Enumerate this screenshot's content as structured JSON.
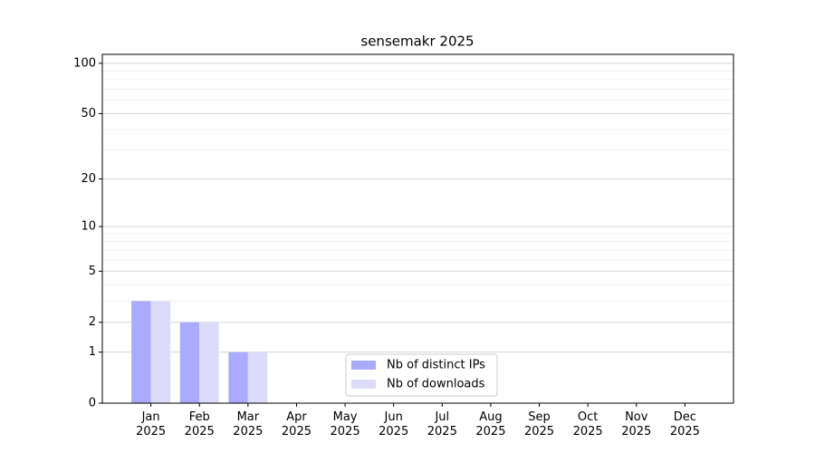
{
  "chart_data": {
    "type": "bar",
    "title": "sensemakr 2025",
    "categories": [
      "Jan\n2025",
      "Feb\n2025",
      "Mar\n2025",
      "Apr\n2025",
      "May\n2025",
      "Jun\n2025",
      "Jul\n2025",
      "Aug\n2025",
      "Sep\n2025",
      "Oct\n2025",
      "Nov\n2025",
      "Dec\n2025"
    ],
    "series": [
      {
        "name": "Nb of distinct IPs",
        "color": "#aaaaff",
        "values": [
          3,
          2,
          1,
          0,
          0,
          0,
          0,
          0,
          0,
          0,
          0,
          0
        ]
      },
      {
        "name": "Nb of downloads",
        "color": "#dcdcfa",
        "values": [
          3,
          2,
          1,
          0,
          0,
          0,
          0,
          0,
          0,
          0,
          0,
          0
        ]
      }
    ],
    "yscale": "log1p",
    "ylim": [
      0,
      113
    ],
    "yticks": [
      0,
      1,
      2,
      5,
      10,
      20,
      50,
      100
    ],
    "minor_yticks": [
      3,
      4,
      6,
      7,
      8,
      9,
      30,
      40,
      60,
      70,
      80,
      90
    ],
    "grid": true,
    "legend": "lower center"
  }
}
